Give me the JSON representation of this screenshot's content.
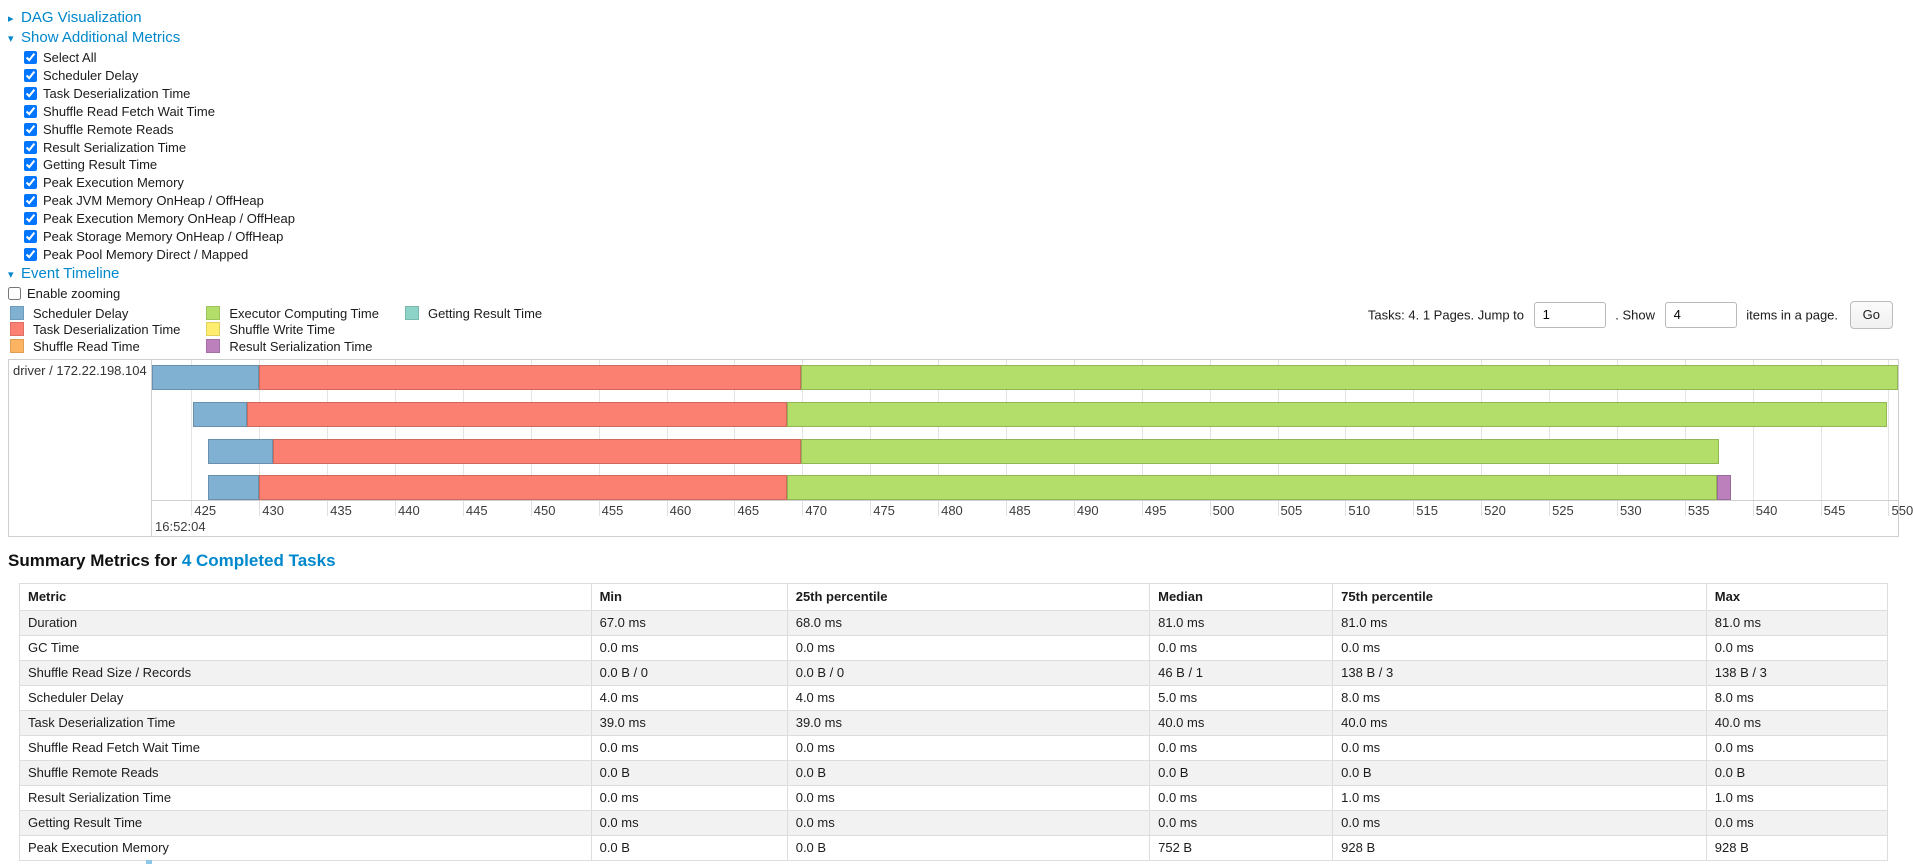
{
  "colors": {
    "link": "#0088cc",
    "stripe": "#f2f2f2"
  },
  "palette": {
    "scheduler-delay": "#80B1D3",
    "task-deserialization": "#FB8072",
    "shuffle-read": "#FDB462",
    "executor-computing": "#B3DE69",
    "shuffle-write": "#FFED6F",
    "result-serialization": "#BC80BD",
    "getting-result": "#8DD3C7"
  },
  "sections": {
    "dag": {
      "label": "DAG Visualization",
      "collapsed": true
    },
    "additional_metrics": {
      "label": "Show Additional Metrics",
      "collapsed": false
    },
    "event_timeline": {
      "label": "Event Timeline",
      "collapsed": false
    }
  },
  "metric_checkboxes": [
    "Select All",
    "Scheduler Delay",
    "Task Deserialization Time",
    "Shuffle Read Fetch Wait Time",
    "Shuffle Remote Reads",
    "Result Serialization Time",
    "Getting Result Time",
    "Peak Execution Memory",
    "Peak JVM Memory OnHeap / OffHeap",
    "Peak Execution Memory OnHeap / OffHeap",
    "Peak Storage Memory OnHeap / OffHeap",
    "Peak Pool Memory Direct / Mapped"
  ],
  "enable_zooming_label": "Enable zooming",
  "legend": [
    {
      "key": "scheduler-delay",
      "label": "Scheduler Delay"
    },
    {
      "key": "task-deserialization",
      "label": "Task Deserialization Time"
    },
    {
      "key": "shuffle-read",
      "label": "Shuffle Read Time"
    },
    {
      "key": "executor-computing",
      "label": "Executor Computing Time"
    },
    {
      "key": "shuffle-write",
      "label": "Shuffle Write Time"
    },
    {
      "key": "result-serialization",
      "label": "Result Serialization Time"
    },
    {
      "key": "getting-result",
      "label": "Getting Result Time"
    }
  ],
  "pagination": {
    "text_before_jump": "Tasks: 4. 1 Pages. Jump to",
    "jump_value": "1",
    "text_between": ". Show",
    "show_value": "4",
    "text_after": "items in a page.",
    "go_label": "Go"
  },
  "chart_data": {
    "type": "timeline",
    "row_label": "driver / 172.22.198.104",
    "time_of_day_label": "16:52:04",
    "axis_unit": "milliseconds within 16:52:04",
    "axis_domain": [
      422.1,
      550.7
    ],
    "axis_ticks": [
      425,
      430,
      435,
      440,
      445,
      450,
      455,
      460,
      465,
      470,
      475,
      480,
      485,
      490,
      495,
      500,
      505,
      510,
      515,
      520,
      525,
      530,
      535,
      540,
      545,
      550
    ],
    "tasks": [
      {
        "segments": [
          {
            "metric": "scheduler-delay",
            "start": 422.1,
            "end": 430.0
          },
          {
            "metric": "task-deserialization",
            "start": 430.0,
            "end": 469.9
          },
          {
            "metric": "executor-computing",
            "start": 469.9,
            "end": 550.7
          }
        ]
      },
      {
        "segments": [
          {
            "metric": "scheduler-delay",
            "start": 425.1,
            "end": 429.1
          },
          {
            "metric": "task-deserialization",
            "start": 429.1,
            "end": 468.9
          },
          {
            "metric": "executor-computing",
            "start": 468.9,
            "end": 549.9
          }
        ]
      },
      {
        "segments": [
          {
            "metric": "scheduler-delay",
            "start": 426.2,
            "end": 431.0
          },
          {
            "metric": "task-deserialization",
            "start": 431.0,
            "end": 469.9
          },
          {
            "metric": "executor-computing",
            "start": 469.9,
            "end": 537.5
          }
        ]
      },
      {
        "segments": [
          {
            "metric": "scheduler-delay",
            "start": 426.2,
            "end": 430.0
          },
          {
            "metric": "task-deserialization",
            "start": 430.0,
            "end": 468.9
          },
          {
            "metric": "executor-computing",
            "start": 468.9,
            "end": 537.4
          },
          {
            "metric": "result-serialization",
            "start": 537.4,
            "end": 538.4
          }
        ]
      }
    ]
  },
  "summary": {
    "title_prefix": "Summary Metrics for ",
    "title_link": "4 Completed Tasks",
    "columns": [
      "Metric",
      "Min",
      "25th percentile",
      "Median",
      "75th percentile",
      "Max"
    ],
    "rows": [
      [
        "Duration",
        "67.0 ms",
        "68.0 ms",
        "81.0 ms",
        "81.0 ms",
        "81.0 ms"
      ],
      [
        "GC Time",
        "0.0 ms",
        "0.0 ms",
        "0.0 ms",
        "0.0 ms",
        "0.0 ms"
      ],
      [
        "Shuffle Read Size / Records",
        "0.0 B / 0",
        "0.0 B / 0",
        "46 B / 1",
        "138 B / 3",
        "138 B / 3"
      ],
      [
        "Scheduler Delay",
        "4.0 ms",
        "4.0 ms",
        "5.0 ms",
        "8.0 ms",
        "8.0 ms"
      ],
      [
        "Task Deserialization Time",
        "39.0 ms",
        "39.0 ms",
        "40.0 ms",
        "40.0 ms",
        "40.0 ms"
      ],
      [
        "Shuffle Read Fetch Wait Time",
        "0.0 ms",
        "0.0 ms",
        "0.0 ms",
        "0.0 ms",
        "0.0 ms"
      ],
      [
        "Shuffle Remote Reads",
        "0.0 B",
        "0.0 B",
        "0.0 B",
        "0.0 B",
        "0.0 B"
      ],
      [
        "Result Serialization Time",
        "0.0 ms",
        "0.0 ms",
        "0.0 ms",
        "1.0 ms",
        "1.0 ms"
      ],
      [
        "Getting Result Time",
        "0.0 ms",
        "0.0 ms",
        "0.0 ms",
        "0.0 ms",
        "0.0 ms"
      ],
      [
        "Peak Execution Memory",
        "0.0 B",
        "0.0 B",
        "752 B",
        "928 B",
        "928 B"
      ]
    ]
  }
}
